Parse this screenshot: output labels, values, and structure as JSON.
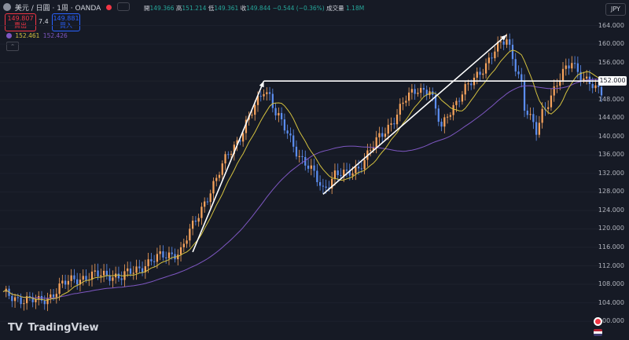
{
  "header": {
    "symbol_title": "美元 / 日圓 · 1周 · OANDA",
    "ohlc": [
      {
        "key": "開",
        "value": "149.366"
      },
      {
        "key": "高",
        "value": "151.214"
      },
      {
        "key": "低",
        "value": "149.361"
      },
      {
        "key": "收",
        "value": "149.844"
      }
    ],
    "change": "−0.544 (−0.36%)",
    "volume_label": "成交量",
    "volume_value": "1.18M"
  },
  "trade": {
    "sell_price": "149.807",
    "sell_label": "賣出",
    "spread": "7.4",
    "buy_price": "149.881",
    "buy_label": "買入"
  },
  "indicator": {
    "value1": "152.461",
    "value2": "152.426"
  },
  "currency": "JPY",
  "brand": "TradingView",
  "price_tag": "152.000",
  "colors": {
    "up": "#f7a35c",
    "down": "#5b8def",
    "ma_fast": "#d4c13f",
    "ma_slow": "#7e57c2",
    "annotation": "#ffffff",
    "background": "#161a25"
  },
  "chart_data": {
    "type": "candlestick",
    "y_ticks": [
      "164.000",
      "160.000",
      "156.000",
      "152.000",
      "148.000",
      "144.000",
      "140.000",
      "136.000",
      "132.000",
      "128.000",
      "124.000",
      "120.000",
      "116.000",
      "112.000",
      "108.000",
      "104.000",
      "100.000"
    ],
    "ylim": [
      99,
      167
    ],
    "close_path": [
      [
        0,
        105.8
      ],
      [
        4,
        105.2
      ],
      [
        8,
        104.6
      ],
      [
        12,
        104.2
      ],
      [
        16,
        105.6
      ],
      [
        20,
        107.8
      ],
      [
        24,
        109.2
      ],
      [
        28,
        109.6
      ],
      [
        32,
        109.9
      ],
      [
        36,
        110.2
      ],
      [
        40,
        109.5
      ],
      [
        44,
        110.8
      ],
      [
        48,
        112.5
      ],
      [
        52,
        113.6
      ],
      [
        56,
        114.5
      ],
      [
        60,
        115.2
      ],
      [
        64,
        120.5
      ],
      [
        68,
        126.0
      ],
      [
        72,
        130.5
      ],
      [
        76,
        136.5
      ],
      [
        80,
        140.0
      ],
      [
        84,
        145.0
      ],
      [
        88,
        150.5
      ],
      [
        90,
        149.0
      ],
      [
        92,
        145.0
      ],
      [
        96,
        140.5
      ],
      [
        100,
        136.0
      ],
      [
        104,
        132.5
      ],
      [
        108,
        128.5
      ],
      [
        112,
        132.0
      ],
      [
        116,
        131.5
      ],
      [
        120,
        133.5
      ],
      [
        124,
        137.0
      ],
      [
        128,
        140.5
      ],
      [
        132,
        144.0
      ],
      [
        136,
        148.0
      ],
      [
        140,
        150.5
      ],
      [
        144,
        150.0
      ],
      [
        146,
        145.5
      ],
      [
        148,
        141.5
      ],
      [
        150,
        145.0
      ],
      [
        154,
        148.5
      ],
      [
        158,
        151.5
      ],
      [
        162,
        155.0
      ],
      [
        166,
        158.5
      ],
      [
        170,
        161.0
      ],
      [
        172,
        157.5
      ],
      [
        175,
        151.5
      ],
      [
        176,
        146.0
      ],
      [
        180,
        141.0
      ],
      [
        182,
        145.5
      ],
      [
        186,
        150.0
      ],
      [
        190,
        154.5
      ],
      [
        192,
        156.5
      ],
      [
        196,
        152.5
      ],
      [
        200,
        150.0
      ],
      [
        202,
        149.8
      ]
    ],
    "annotations": {
      "trend_line_1": {
        "from": [
          64,
          115.0
        ],
        "to": [
          88,
          152.0
        ]
      },
      "horizontal_line": {
        "price": 152.0
      },
      "trend_line_2": {
        "from": [
          108,
          127.5
        ],
        "to": [
          170,
          162.0
        ]
      }
    }
  }
}
